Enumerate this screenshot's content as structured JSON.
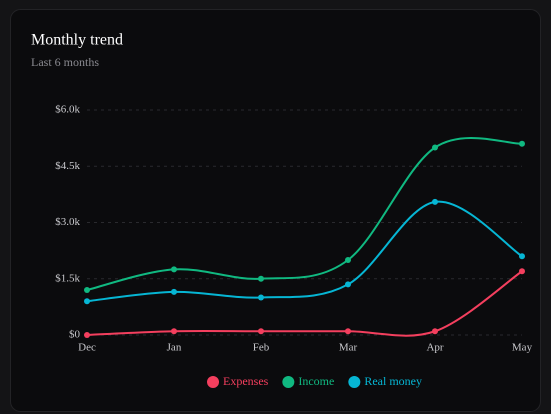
{
  "chart_data": {
    "type": "line",
    "title": "Monthly trend",
    "subtitle": "Last 6 months",
    "categories": [
      "Dec",
      "Jan",
      "Feb",
      "Mar",
      "Apr",
      "May"
    ],
    "series": [
      {
        "name": "Expenses",
        "color": "#f43f5e",
        "values": [
          0,
          100,
          100,
          100,
          100,
          1700
        ]
      },
      {
        "name": "Income",
        "color": "#10b981",
        "values": [
          1200,
          1750,
          1500,
          2000,
          5000,
          5100
        ]
      },
      {
        "name": "Real money",
        "color": "#06b6d4",
        "values": [
          900,
          1150,
          1000,
          1350,
          3550,
          2100
        ]
      }
    ],
    "ylim": [
      0,
      6000
    ],
    "yticks": [
      {
        "value": 0,
        "label": "$0"
      },
      {
        "value": 1500,
        "label": "$1.5k"
      },
      {
        "value": 3000,
        "label": "$3.0k"
      },
      {
        "value": 4500,
        "label": "$4.5k"
      },
      {
        "value": 6000,
        "label": "$6.0k"
      }
    ],
    "grid": true,
    "legend": "bottom"
  }
}
